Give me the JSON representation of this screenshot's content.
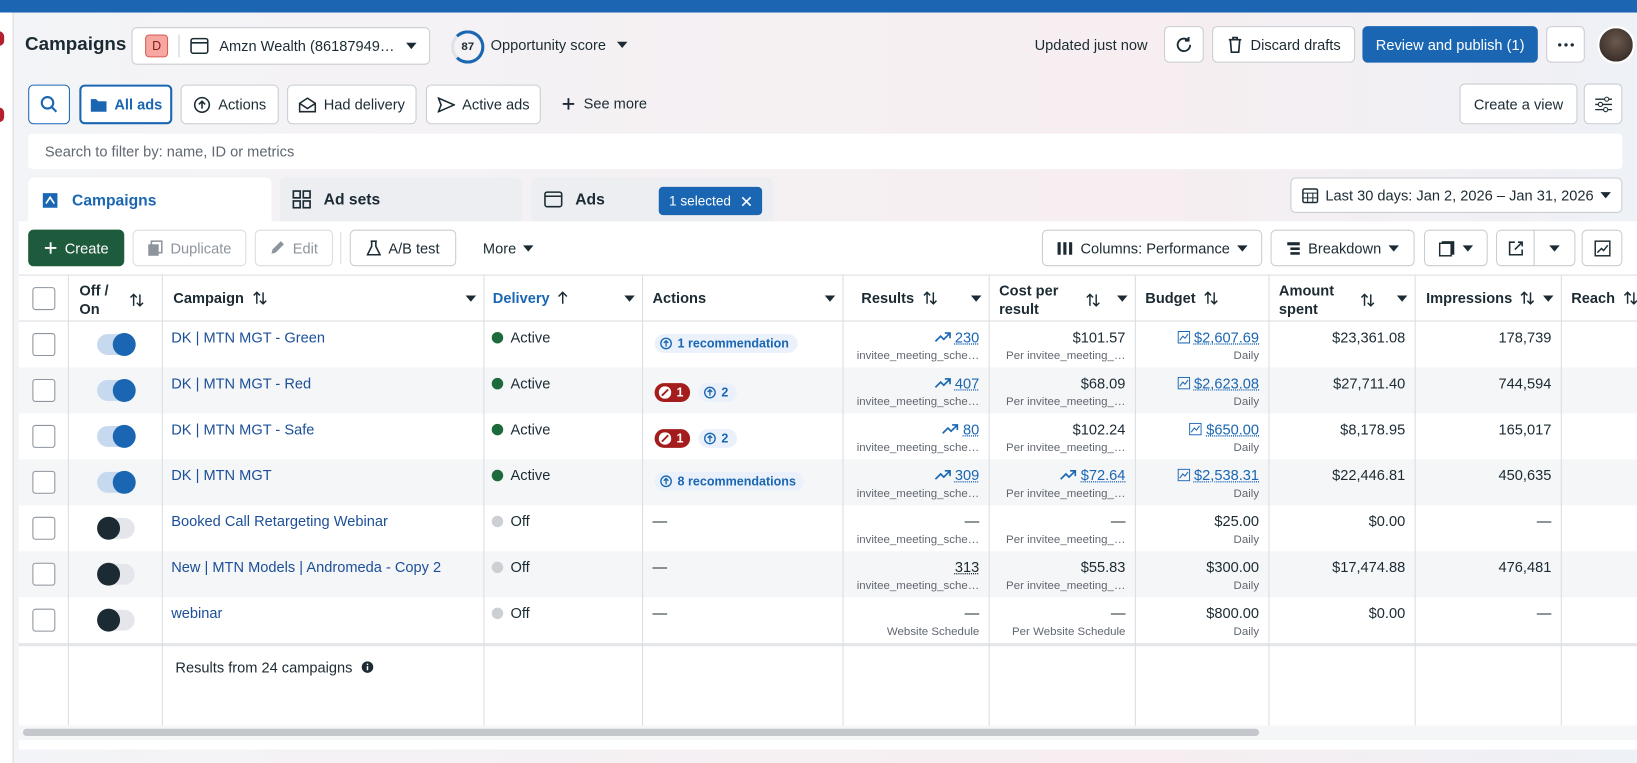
{
  "header": {
    "title": "Campaigns",
    "account_badge": "D",
    "account": "Amzn Wealth (86187949…",
    "opportunity_score": "87",
    "opportunity_label": "Opportunity score",
    "updated": "Updated just now",
    "discard": "Discard drafts",
    "publish": "Review and publish (1)"
  },
  "filters": {
    "items": [
      "All ads",
      "Actions",
      "Had delivery",
      "Active ads"
    ],
    "see_more": "See more",
    "create_view": "Create a view"
  },
  "search_placeholder": "Search to filter by: name, ID or metrics",
  "tabs": {
    "items": [
      "Campaigns",
      "Ad sets",
      "Ads"
    ],
    "selected": "1 selected"
  },
  "date_range": "Last 30 days: Jan 2, 2026 – Jan 31, 2026",
  "toolbar": {
    "create": "Create",
    "duplicate": "Duplicate",
    "edit": "Edit",
    "ab_test": "A/B test",
    "more": "More",
    "columns": "Columns: Performance",
    "breakdown": "Breakdown"
  },
  "table": {
    "columns": [
      "Off / On",
      "Campaign",
      "Delivery",
      "Actions",
      "Results",
      "Cost per result",
      "Budget",
      "Amount spent",
      "Impressions",
      "Reach"
    ],
    "rows": [
      {
        "on": true,
        "name": "DK | MTN MGT - Green",
        "delivery": "Active",
        "actions": {
          "recommendation": "1 recommendation"
        },
        "results": "230",
        "results_sub": "invitee_meeting_sche…",
        "results_style": "trend",
        "cost": "$101.57",
        "cost_sub": "Per invitee_meeting_…",
        "cost_style": "plain",
        "budget": "$2,607.69",
        "budget_sub": "Daily",
        "budget_link": true,
        "spent": "$23,361.08",
        "impressions": "178,739"
      },
      {
        "on": true,
        "name": "DK | MTN MGT - Red",
        "delivery": "Active",
        "actions": {
          "error": "1",
          "recommendation": "2"
        },
        "results": "407",
        "results_sub": "invitee_meeting_sche…",
        "results_style": "trend",
        "cost": "$68.09",
        "cost_sub": "Per invitee_meeting_…",
        "cost_style": "plain",
        "budget": "$2,623.08",
        "budget_sub": "Daily",
        "budget_link": true,
        "spent": "$27,711.40",
        "impressions": "744,594"
      },
      {
        "on": true,
        "name": "DK | MTN MGT - Safe",
        "delivery": "Active",
        "actions": {
          "error": "1",
          "recommendation": "2"
        },
        "results": "80",
        "results_sub": "invitee_meeting_sche…",
        "results_style": "trend",
        "cost": "$102.24",
        "cost_sub": "Per invitee_meeting_…",
        "cost_style": "plain",
        "budget": "$650.00",
        "budget_sub": "Daily",
        "budget_link": true,
        "spent": "$8,178.95",
        "impressions": "165,017"
      },
      {
        "on": true,
        "name": "DK | MTN MGT",
        "delivery": "Active",
        "actions": {
          "recommendation": "8 recommendations"
        },
        "results": "309",
        "results_sub": "invitee_meeting_sche…",
        "results_style": "trend",
        "cost": "$72.64",
        "cost_sub": "Per invitee_meeting_…",
        "cost_style": "trend",
        "budget": "$2,538.31",
        "budget_sub": "Daily",
        "budget_link": true,
        "spent": "$22,446.81",
        "impressions": "450,635"
      },
      {
        "on": false,
        "name": "Booked Call Retargeting Webinar",
        "delivery": "Off",
        "actions": {
          "text": "—"
        },
        "results": "—",
        "results_sub": "invitee_meeting_sche…",
        "results_style": "plain",
        "cost": "—",
        "cost_sub": "Per invitee_meeting_…",
        "cost_style": "plain",
        "budget": "$25.00",
        "budget_sub": "Daily",
        "budget_link": false,
        "spent": "$0.00",
        "impressions": "—"
      },
      {
        "on": false,
        "name": "New | MTN Models | Andromeda - Copy 2",
        "delivery": "Off",
        "actions": {
          "text": "—"
        },
        "results": "313",
        "results_sub": "invitee_meeting_sche…",
        "results_style": "link",
        "cost": "$55.83",
        "cost_sub": "Per invitee_meeting_…",
        "cost_style": "plain",
        "budget": "$300.00",
        "budget_sub": "Daily",
        "budget_link": false,
        "spent": "$17,474.88",
        "impressions": "476,481"
      },
      {
        "on": false,
        "name": "webinar",
        "delivery": "Off",
        "actions": {
          "text": "—"
        },
        "results": "—",
        "results_sub": "Website Schedule",
        "results_style": "plain",
        "cost": "—",
        "cost_sub": "Per Website Schedule",
        "cost_style": "plain",
        "budget": "$800.00",
        "budget_sub": "Daily",
        "budget_link": false,
        "spent": "$0.00",
        "impressions": "—"
      }
    ],
    "footer": "Results from 24 campaigns"
  }
}
